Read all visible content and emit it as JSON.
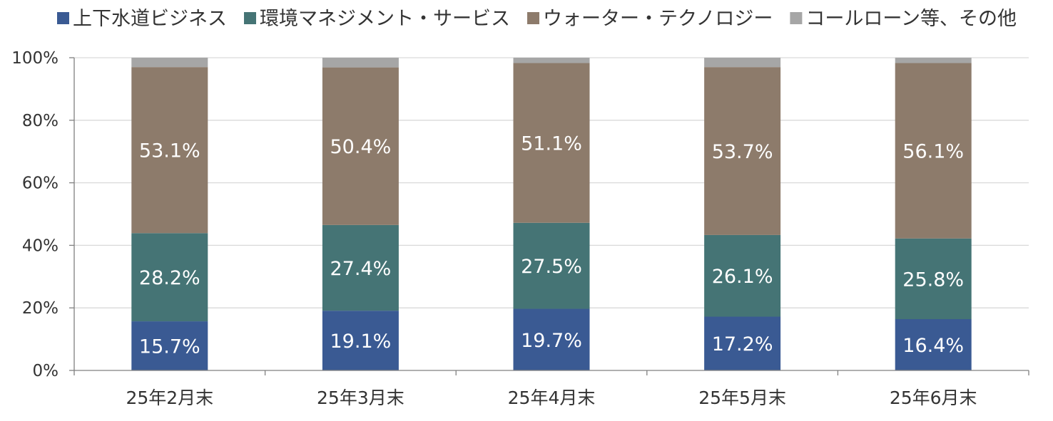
{
  "chart_data": {
    "type": "bar",
    "stacked": true,
    "percent_stacked": true,
    "categories": [
      "25年2月末",
      "25年3月末",
      "25年4月末",
      "25年5月末",
      "25年6月末"
    ],
    "series": [
      {
        "name": "上下水道ビジネス",
        "values": [
          15.7,
          19.1,
          19.7,
          17.2,
          16.4
        ],
        "labels": [
          "15.7%",
          "19.1%",
          "19.7%",
          "17.2%",
          "16.4%"
        ],
        "color": "#3a5a93"
      },
      {
        "name": "環境マネジメント・サービス",
        "values": [
          28.2,
          27.4,
          27.5,
          26.1,
          25.8
        ],
        "labels": [
          "28.2%",
          "27.4%",
          "27.5%",
          "26.1%",
          "25.8%"
        ],
        "color": "#457475"
      },
      {
        "name": "ウォーター・テクノロジー",
        "values": [
          53.1,
          50.4,
          51.1,
          53.7,
          56.1
        ],
        "labels": [
          "53.1%",
          "50.4%",
          "51.1%",
          "53.7%",
          "56.1%"
        ],
        "color": "#8d7b6b"
      },
      {
        "name": "コールローン等、その他",
        "values": [
          3.0,
          3.1,
          1.7,
          3.0,
          1.7
        ],
        "labels": [
          "",
          "",
          "",
          "",
          ""
        ],
        "color": "#a6a6a6"
      }
    ],
    "ylim": [
      0,
      100
    ],
    "yticks": [
      0,
      20,
      40,
      60,
      80,
      100
    ],
    "ytick_labels": [
      "0%",
      "20%",
      "40%",
      "60%",
      "80%",
      "100%"
    ],
    "title": "",
    "xlabel": "",
    "ylabel": "",
    "grid": true,
    "legend": "top"
  }
}
